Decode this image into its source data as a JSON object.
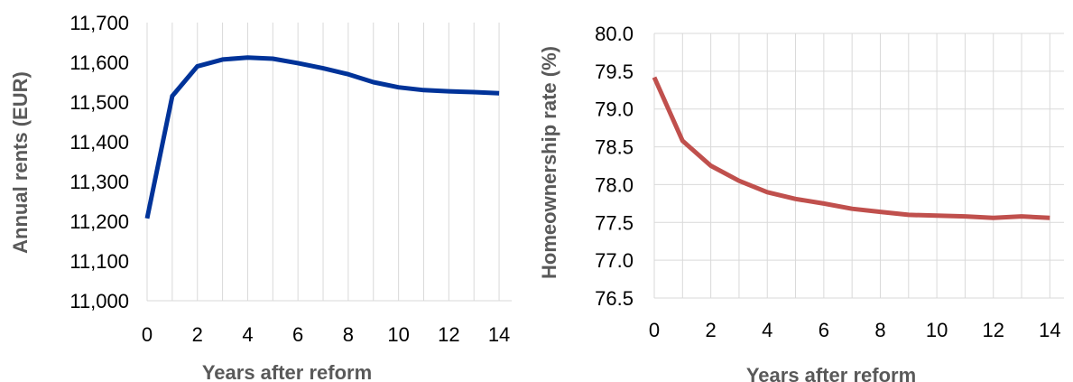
{
  "chart_data": [
    {
      "type": "line",
      "title": "",
      "xlabel": "Years after reform",
      "ylabel": "Annual rents (EUR)",
      "xlim": [
        0,
        14.5
      ],
      "ylim": [
        11000,
        11700
      ],
      "x_ticks": [
        "0",
        "2",
        "4",
        "6",
        "8",
        "10",
        "12",
        "14"
      ],
      "y_ticks": [
        "11,000",
        "11,100",
        "11,200",
        "11,300",
        "11,400",
        "11,500",
        "11,600",
        "11,700"
      ],
      "grid": "vertical",
      "series": [
        {
          "color": "#003399",
          "x": [
            0,
            1,
            2,
            3,
            4,
            5,
            6,
            7,
            8,
            9,
            10,
            11,
            12,
            13,
            14
          ],
          "y": [
            11207,
            11515,
            11590,
            11607,
            11612,
            11609,
            11598,
            11585,
            11570,
            11550,
            11537,
            11530,
            11527,
            11525,
            11522
          ]
        }
      ]
    },
    {
      "type": "line",
      "title": "",
      "xlabel": "Years after reform",
      "ylabel": "Homeownership rate (%)",
      "xlim": [
        0,
        14.5
      ],
      "ylim": [
        76.5,
        80.0
      ],
      "x_ticks": [
        "0",
        "2",
        "4",
        "6",
        "8",
        "10",
        "12",
        "14"
      ],
      "y_ticks": [
        "76.5",
        "77.0",
        "77.5",
        "78.0",
        "78.5",
        "79.0",
        "79.5",
        "80.0"
      ],
      "grid": "both",
      "series": [
        {
          "color": "#c0504d",
          "x": [
            0,
            1,
            2,
            3,
            4,
            5,
            6,
            7,
            8,
            9,
            10,
            11,
            12,
            13,
            14
          ],
          "y": [
            79.42,
            78.58,
            78.25,
            78.05,
            77.9,
            77.81,
            77.75,
            77.68,
            77.64,
            77.6,
            77.59,
            77.58,
            77.56,
            77.58,
            77.56
          ]
        }
      ]
    }
  ]
}
